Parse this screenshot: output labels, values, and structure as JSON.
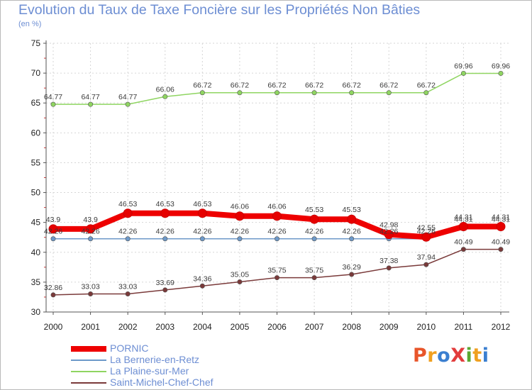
{
  "chart_data": {
    "type": "line",
    "title": "Evolution du Taux de Taxe Foncière sur les Propriétés Non Bâties",
    "subtitle": "(en %)",
    "xlabel": "",
    "ylabel": "",
    "ylim": [
      30,
      75
    ],
    "yticks": [
      30,
      35,
      40,
      45,
      50,
      55,
      60,
      65,
      70,
      75
    ],
    "categories": [
      "2000",
      "2001",
      "2002",
      "2003",
      "2004",
      "2005",
      "2006",
      "2007",
      "2008",
      "2009",
      "2010",
      "2011",
      "2012"
    ],
    "series": [
      {
        "name": "PORNIC",
        "color": "#ee0000",
        "values": [
          43.9,
          43.9,
          46.53,
          46.53,
          46.53,
          46.06,
          46.06,
          45.53,
          45.53,
          42.98,
          42.55,
          44.31,
          44.31
        ],
        "labels": [
          "43.9",
          "43.9",
          "46.53",
          "46.53",
          "46.53",
          "46.06",
          "46.06",
          "45.53",
          "45.53",
          "42.98",
          "42.55",
          "44.31",
          "44.31"
        ]
      },
      {
        "name": "La Bernerie-en-Retz",
        "color": "#6d99c9",
        "values": [
          42.26,
          42.26,
          42.26,
          42.26,
          42.26,
          42.26,
          42.26,
          42.26,
          42.26,
          42.26,
          42.26,
          44.31,
          44.31
        ],
        "labels": [
          "42.26",
          "42.26",
          "42.26",
          "42.26",
          "42.26",
          "42.26",
          "42.26",
          "42.26",
          "42.26",
          "42.26",
          "42.26",
          "44.31",
          "44.31"
        ]
      },
      {
        "name": "La Plaine-sur-Mer",
        "color": "#8fd561",
        "values": [
          64.77,
          64.77,
          64.77,
          66.06,
          66.72,
          66.72,
          66.72,
          66.72,
          66.72,
          66.72,
          66.72,
          69.96,
          69.96
        ],
        "labels": [
          "64.77",
          "64.77",
          "64.77",
          "66.06",
          "66.72",
          "66.72",
          "66.72",
          "66.72",
          "66.72",
          "66.72",
          "66.72",
          "69.96",
          "69.96"
        ]
      },
      {
        "name": "Saint-Michel-Chef-Chef",
        "color": "#7a3a3a",
        "values": [
          32.86,
          33.03,
          33.03,
          33.69,
          34.36,
          35.05,
          35.75,
          35.75,
          36.29,
          37.38,
          37.94,
          40.49,
          40.49
        ],
        "labels": [
          "32.86",
          "33.03",
          "33.03",
          "33.69",
          "34.36",
          "35.05",
          "35.75",
          "35.75",
          "36.29",
          "37.38",
          "37.94",
          "40.49",
          "40.49"
        ]
      }
    ],
    "legend": "bottom-left"
  },
  "brand": {
    "text": "ProXiti",
    "colors": [
      "#e8552a",
      "#f0a020",
      "#3b7fd0",
      "#e23c3c",
      "#5aa832",
      "#f0a020",
      "#3b7fd0"
    ]
  }
}
